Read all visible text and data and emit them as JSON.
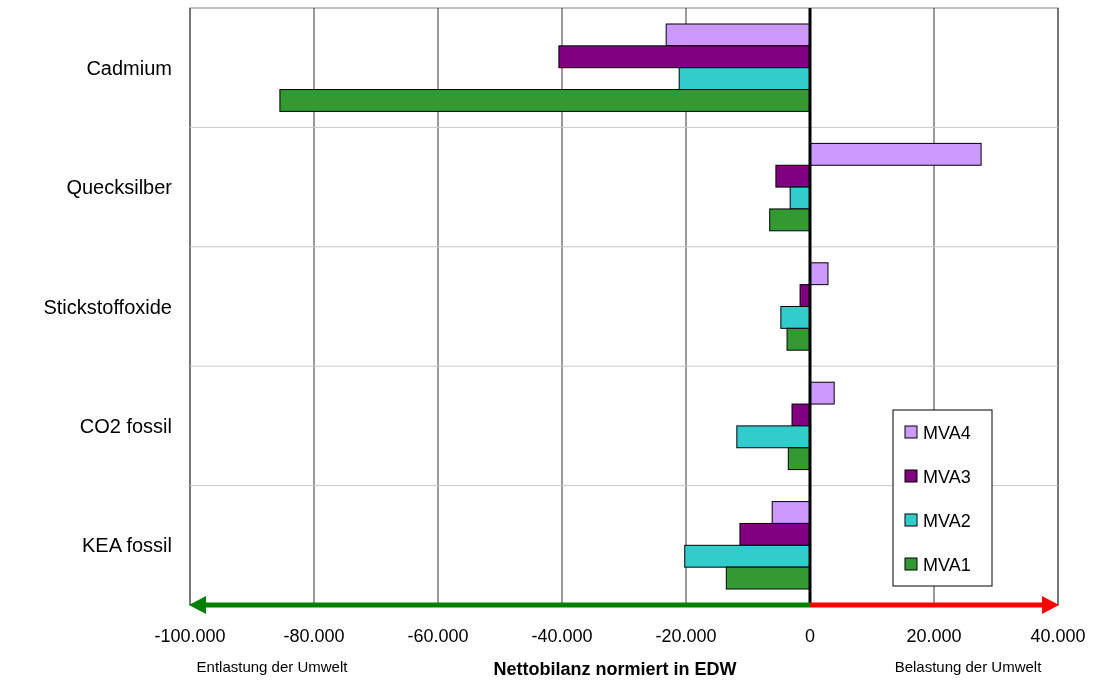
{
  "chart_data": {
    "type": "bar",
    "orientation": "horizontal",
    "xlabel": "Nettobilanz normiert in EDW",
    "categories": [
      "Cadmium",
      "Quecksilber",
      "Stickstoffoxide",
      "CO2 fossil",
      "KEA fossil"
    ],
    "series": [
      {
        "name": "MVA4",
        "color": "#cc99ff",
        "values": [
          -23200,
          27600,
          2900,
          3900,
          -6100
        ]
      },
      {
        "name": "MVA3",
        "color": "#800080",
        "values": [
          -40500,
          -5500,
          -1600,
          -2900,
          -11300
        ]
      },
      {
        "name": "MVA2",
        "color": "#33cccc",
        "values": [
          -21100,
          -3200,
          -4700,
          -11800,
          -20200
        ]
      },
      {
        "name": "MVA1",
        "color": "#339933",
        "values": [
          -85500,
          -6500,
          -3700,
          -3500,
          -13500
        ]
      }
    ],
    "xlim": [
      -100000,
      40000
    ],
    "xticks": [
      {
        "value": -100000,
        "label": "-100.000"
      },
      {
        "value": -80000,
        "label": "-80.000"
      },
      {
        "value": -60000,
        "label": "-60.000"
      },
      {
        "value": -40000,
        "label": "-40.000"
      },
      {
        "value": -20000,
        "label": "-20.000"
      },
      0,
      {
        "value": 20000,
        "label": "20.000"
      },
      {
        "value": 40000,
        "label": "40.000"
      }
    ],
    "grid": "x",
    "legend": "bottom right",
    "ref_lines": [
      {
        "axis": "x",
        "value": 0,
        "color": "#000000"
      }
    ],
    "annotations": [
      "Entlastung der Umwelt",
      "Belastung der Umwelt"
    ]
  }
}
